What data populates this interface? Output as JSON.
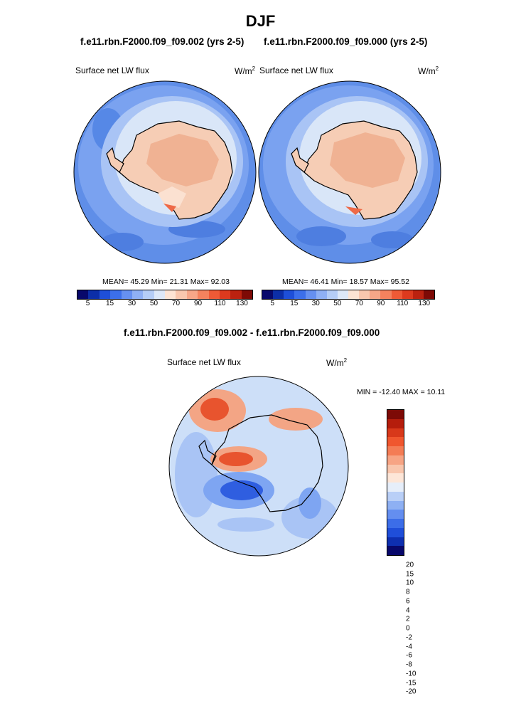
{
  "season": "DJF",
  "panel_left": {
    "case": "f.e11.rbn.F2000.f09_f09.002 (yrs 2-5)",
    "variable": "Surface net LW flux",
    "units": "W/m",
    "units_exp": "2",
    "mean_label": "MEAN=",
    "mean": "45.29",
    "min_label": "Min=",
    "min": "21.31",
    "max_label": "Max=",
    "max": "92.03"
  },
  "panel_right": {
    "case": "f.e11.rbn.F2000.f09_f09.000 (yrs 2-5)",
    "variable": "Surface net LW flux",
    "units": "W/m",
    "units_exp": "2",
    "mean_label": "MEAN=",
    "mean": "46.41",
    "min_label": "Min=",
    "min": "18.57",
    "max_label": "Max=",
    "max": "95.52"
  },
  "panel_diff": {
    "title": "f.e11.rbn.F2000.f09_f09.002 - f.e11.rbn.F2000.f09_f09.000",
    "variable": "Surface net LW flux",
    "units": "W/m",
    "units_exp": "2",
    "minmax": "MIN = -12.40 MAX = 10.11"
  },
  "colorbar_main": {
    "colors": [
      "#08086b",
      "#0c2ea8",
      "#1e4fd8",
      "#3c6fea",
      "#6690f0",
      "#8fb0f4",
      "#b5cdf6",
      "#dde8f8",
      "#fde4d4",
      "#f9c7ae",
      "#f6a688",
      "#f4825e",
      "#ef5a36",
      "#dd3a1e",
      "#bb2210",
      "#7d0a06"
    ],
    "tick_labels": [
      "5",
      "15",
      "30",
      "50",
      "70",
      "90",
      "110",
      "130"
    ]
  },
  "colorbar_diff": {
    "colors": [
      "#7d0a06",
      "#b51d0c",
      "#d8381a",
      "#f0562e",
      "#f47c55",
      "#f7a484",
      "#f9c6ad",
      "#fde6d8",
      "#e6eefa",
      "#b9cff7",
      "#8eb0f3",
      "#648ef0",
      "#3c6de8",
      "#1f4ed9",
      "#0e2fb0",
      "#08086b"
    ],
    "tick_labels": [
      "20",
      "15",
      "10",
      "8",
      "6",
      "4",
      "2",
      "0",
      "-2",
      "-4",
      "-6",
      "-8",
      "-10",
      "-15",
      "-20"
    ]
  },
  "map_colors": {
    "ocean_far": "#5f8ee8",
    "ocean_mid": "#7aa2f0",
    "ocean_near": "#a9c4f5",
    "ice_edge": "#d9e6f8",
    "land_cool": "#f6cdb5",
    "land_warm": "#f0b293",
    "land_light": "#fbe1d1",
    "hot": "#ee6a48",
    "outline": "#000000",
    "diff_bg": "#cddff8",
    "diff_pos": "#f3a585",
    "diff_pos_strong": "#e8542e",
    "diff_neg": "#7ea5f2",
    "diff_neg_strong": "#2f5ee0"
  }
}
